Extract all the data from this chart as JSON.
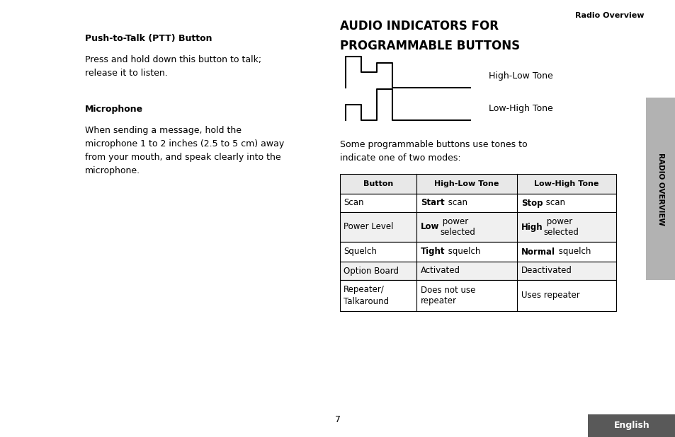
{
  "bg_color": "#ffffff",
  "page_width": 9.54,
  "page_height": 6.18,
  "dpi": 100,
  "header_text": "Radio Overview",
  "left_col": {
    "ptt_heading": "Push-to-Talk (PTT) Button",
    "ptt_body": "Press and hold down this button to talk;\nrelease it to listen.",
    "mic_heading": "Microphone",
    "mic_body": "When sending a message, hold the\nmicrophone 1 to 2 inches (2.5 to 5 cm) away\nfrom your mouth, and speak clearly into the\nmicrophone."
  },
  "right_col": {
    "section_title_line1": "AUDIO INDICATORS FOR",
    "section_title_line2": "PROGRAMMABLE BUTTONS",
    "tone_label1": "High-Low Tone",
    "tone_label2": "Low-High Tone",
    "intro_text": "Some programmable buttons use tones to\nindicate one of two modes:",
    "table_headers": [
      "Button",
      "High-Low Tone",
      "Low-High Tone"
    ]
  },
  "sidebar": {
    "text": "RADIO OVERVIEW",
    "bg_color": "#b2b2b2",
    "text_color": "#000000"
  },
  "footer": {
    "page_num": "7",
    "english_bg": "#595959",
    "english_text": "English",
    "english_text_color": "#ffffff"
  }
}
